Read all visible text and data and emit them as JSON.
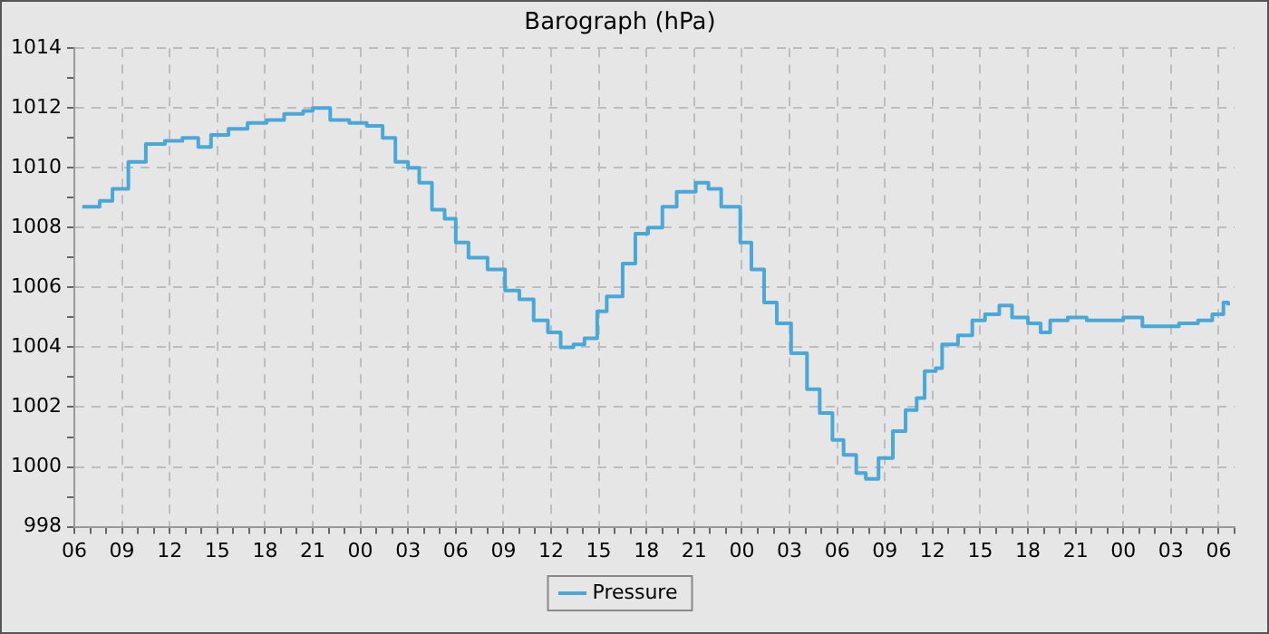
{
  "chart_data": {
    "type": "step",
    "title": "Barograph (hPa)",
    "x": [
      6.5,
      7.6,
      8.4,
      9.4,
      10.5,
      11.7,
      12.8,
      13.8,
      14.6,
      15.7,
      16.9,
      18.1,
      19.2,
      20.4,
      21,
      22.1,
      23.3,
      24.4,
      25.4,
      26.2,
      27,
      27.7,
      28.5,
      29.3,
      30,
      30.8,
      32,
      33.1,
      34,
      34.9,
      35.8,
      36.6,
      37.4,
      38.1,
      38.9,
      39.5,
      40.5,
      41.3,
      42.1,
      43,
      43.9,
      45.1,
      45.9,
      46.7,
      47.4,
      47.9,
      48.6,
      49.4,
      50.2,
      51.1,
      52.1,
      52.9,
      53.7,
      54.4,
      55.2,
      55.8,
      56.6,
      57.5,
      58.3,
      59,
      59.5,
      60.2,
      60.6,
      61.6,
      62.5,
      63.3,
      64.2,
      65,
      66,
      66.8,
      67.4,
      68.5,
      69.7,
      70.8,
      72,
      73.2,
      74.3,
      75.5,
      76.7,
      77.6,
      78.3,
      78.6
    ],
    "series": [
      {
        "name": "Pressure",
        "color": "#4aa8d8",
        "values": [
          1008.7,
          1008.9,
          1009.3,
          1010.2,
          1010.8,
          1010.9,
          1011.0,
          1010.7,
          1011.1,
          1011.3,
          1011.5,
          1011.6,
          1011.8,
          1011.9,
          1012.0,
          1011.6,
          1011.5,
          1011.4,
          1011.0,
          1010.2,
          1010.0,
          1009.5,
          1008.6,
          1008.3,
          1007.5,
          1007.0,
          1006.6,
          1005.9,
          1005.6,
          1004.9,
          1004.5,
          1004.0,
          1004.1,
          1004.3,
          1005.2,
          1005.7,
          1006.8,
          1007.8,
          1008.0,
          1008.7,
          1009.2,
          1009.5,
          1009.3,
          1008.7,
          1008.7,
          1007.5,
          1006.6,
          1005.5,
          1004.8,
          1003.8,
          1002.6,
          1001.8,
          1000.9,
          1000.4,
          999.8,
          999.6,
          1000.3,
          1001.2,
          1001.9,
          1002.3,
          1003.2,
          1003.3,
          1004.1,
          1004.4,
          1004.9,
          1005.1,
          1005.4,
          1005.0,
          1004.8,
          1004.5,
          1004.9,
          1005.0,
          1004.9,
          1004.9,
          1005.0,
          1004.7,
          1004.7,
          1004.8,
          1004.9,
          1005.1,
          1005.5,
          1005.4
        ]
      }
    ],
    "xlim": [
      6,
      79
    ],
    "xticks": [
      {
        "value": 6,
        "label": "06"
      },
      {
        "value": 7,
        "label": null
      },
      {
        "value": 8,
        "label": null
      },
      {
        "value": 9,
        "label": "09"
      },
      {
        "value": 10,
        "label": null
      },
      {
        "value": 11,
        "label": null
      },
      {
        "value": 12,
        "label": "12"
      },
      {
        "value": 13,
        "label": null
      },
      {
        "value": 14,
        "label": null
      },
      {
        "value": 15,
        "label": "15"
      },
      {
        "value": 16,
        "label": null
      },
      {
        "value": 17,
        "label": null
      },
      {
        "value": 18,
        "label": "18"
      },
      {
        "value": 19,
        "label": null
      },
      {
        "value": 20,
        "label": null
      },
      {
        "value": 21,
        "label": "21"
      },
      {
        "value": 22,
        "label": null
      },
      {
        "value": 23,
        "label": null
      },
      {
        "value": 24,
        "label": "00"
      },
      {
        "value": 25,
        "label": null
      },
      {
        "value": 26,
        "label": null
      },
      {
        "value": 27,
        "label": "03"
      },
      {
        "value": 28,
        "label": null
      },
      {
        "value": 29,
        "label": null
      },
      {
        "value": 30,
        "label": "06"
      },
      {
        "value": 31,
        "label": null
      },
      {
        "value": 32,
        "label": null
      },
      {
        "value": 33,
        "label": "09"
      },
      {
        "value": 34,
        "label": null
      },
      {
        "value": 35,
        "label": null
      },
      {
        "value": 36,
        "label": "12"
      },
      {
        "value": 37,
        "label": null
      },
      {
        "value": 38,
        "label": null
      },
      {
        "value": 39,
        "label": "15"
      },
      {
        "value": 40,
        "label": null
      },
      {
        "value": 41,
        "label": null
      },
      {
        "value": 42,
        "label": "18"
      },
      {
        "value": 43,
        "label": null
      },
      {
        "value": 44,
        "label": null
      },
      {
        "value": 45,
        "label": "21"
      },
      {
        "value": 46,
        "label": null
      },
      {
        "value": 47,
        "label": null
      },
      {
        "value": 48,
        "label": "00"
      },
      {
        "value": 49,
        "label": null
      },
      {
        "value": 50,
        "label": null
      },
      {
        "value": 51,
        "label": "03"
      },
      {
        "value": 52,
        "label": null
      },
      {
        "value": 53,
        "label": null
      },
      {
        "value": 54,
        "label": "06"
      },
      {
        "value": 55,
        "label": null
      },
      {
        "value": 56,
        "label": null
      },
      {
        "value": 57,
        "label": "09"
      },
      {
        "value": 58,
        "label": null
      },
      {
        "value": 59,
        "label": null
      },
      {
        "value": 60,
        "label": "12"
      },
      {
        "value": 61,
        "label": null
      },
      {
        "value": 62,
        "label": null
      },
      {
        "value": 63,
        "label": "15"
      },
      {
        "value": 64,
        "label": null
      },
      {
        "value": 65,
        "label": null
      },
      {
        "value": 66,
        "label": "18"
      },
      {
        "value": 67,
        "label": null
      },
      {
        "value": 68,
        "label": null
      },
      {
        "value": 69,
        "label": "21"
      },
      {
        "value": 70,
        "label": null
      },
      {
        "value": 71,
        "label": null
      },
      {
        "value": 72,
        "label": "00"
      },
      {
        "value": 73,
        "label": null
      },
      {
        "value": 74,
        "label": null
      },
      {
        "value": 75,
        "label": "03"
      },
      {
        "value": 76,
        "label": null
      },
      {
        "value": 77,
        "label": null
      },
      {
        "value": 78,
        "label": "06"
      },
      {
        "value": 79,
        "label": null
      }
    ],
    "ylim": [
      998,
      1014
    ],
    "yticks": [
      998,
      {
        "value": 999,
        "label": null
      },
      1000,
      {
        "value": 1001,
        "label": null
      },
      1002,
      {
        "value": 1003,
        "label": null
      },
      1004,
      {
        "value": 1005,
        "label": null
      },
      1006,
      {
        "value": 1007,
        "label": null
      },
      1008,
      {
        "value": 1009,
        "label": null
      },
      1010,
      {
        "value": 1011,
        "label": null
      },
      1012,
      {
        "value": 1013,
        "label": null
      },
      1014
    ],
    "grid": true,
    "legend": "bottom",
    "marker": "none",
    "line_style": "solid"
  }
}
